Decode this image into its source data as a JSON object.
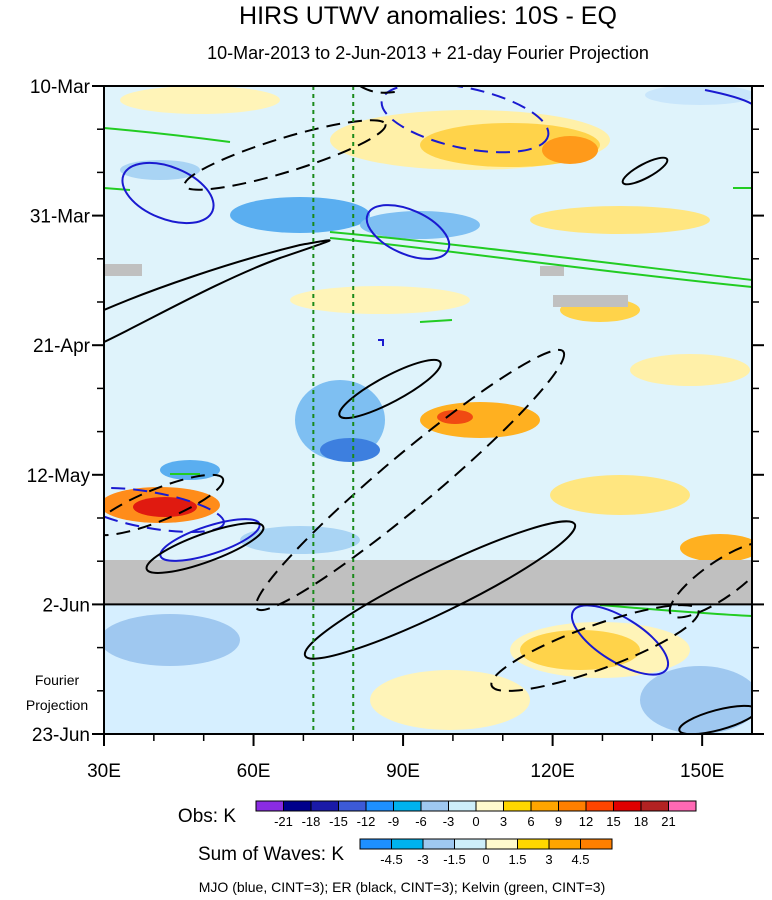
{
  "chart_data": {
    "type": "heatmap",
    "title": "HIRS UTWV anomalies: 10S - EQ",
    "subtitle": "10-Mar-2013 to 2-Jun-2013 + 21-day Fourier Projection",
    "x_axis": {
      "tick_labels": [
        "30E",
        "60E",
        "90E",
        "120E",
        "150E"
      ],
      "tick_values": [
        30,
        60,
        90,
        120,
        150
      ],
      "range": [
        30,
        160
      ]
    },
    "y_axis": {
      "tick_labels": [
        "10-Mar",
        "31-Mar",
        "21-Apr",
        "12-May",
        "2-Jun",
        "23-Jun"
      ],
      "tick_dates": [
        "2013-03-10",
        "2013-03-31",
        "2013-04-21",
        "2013-05-12",
        "2013-06-02",
        "2013-06-23"
      ],
      "range": [
        "2013-03-10",
        "2013-06-23"
      ],
      "direction": "down"
    },
    "projection_label": [
      "Fourier",
      "Projection"
    ],
    "projection_start": "2013-06-02",
    "reference_longitudes": [
      72,
      80
    ],
    "obs_colorbar": {
      "label": "Obs: K",
      "ticks": [
        "-21",
        "-18",
        "-15",
        "-12",
        "-9",
        "-6",
        "-3",
        "0",
        "3",
        "6",
        "9",
        "12",
        "15",
        "18",
        "21"
      ],
      "colors": [
        "#8a2be2",
        "#00008b",
        "#1a1aa8",
        "#3c5ad6",
        "#1e90ff",
        "#00b2ee",
        "#9fc8f0",
        "#cdeefa",
        "#fffacd",
        "#ffd700",
        "#ffa500",
        "#ff7f00",
        "#ff4500",
        "#e00000",
        "#b22222",
        "#ff69b4"
      ]
    },
    "waves_colorbar": {
      "label": "Sum of Waves: K",
      "ticks": [
        "-4.5",
        "-3",
        "-1.5",
        "0",
        "1.5",
        "3",
        "4.5"
      ],
      "colors": [
        "#1e90ff",
        "#00b2ee",
        "#9fc8f0",
        "#cdeefa",
        "#fffacd",
        "#ffd700",
        "#ffa500",
        "#ff7f00"
      ]
    },
    "caption": "MJO (blue, CINT=3); ER (black, CINT=3); Kelvin (green, CINT=3)",
    "series_colors": {
      "MJO": "#1a1ad0",
      "ER": "#000000",
      "Kelvin": "#22cc22"
    }
  }
}
